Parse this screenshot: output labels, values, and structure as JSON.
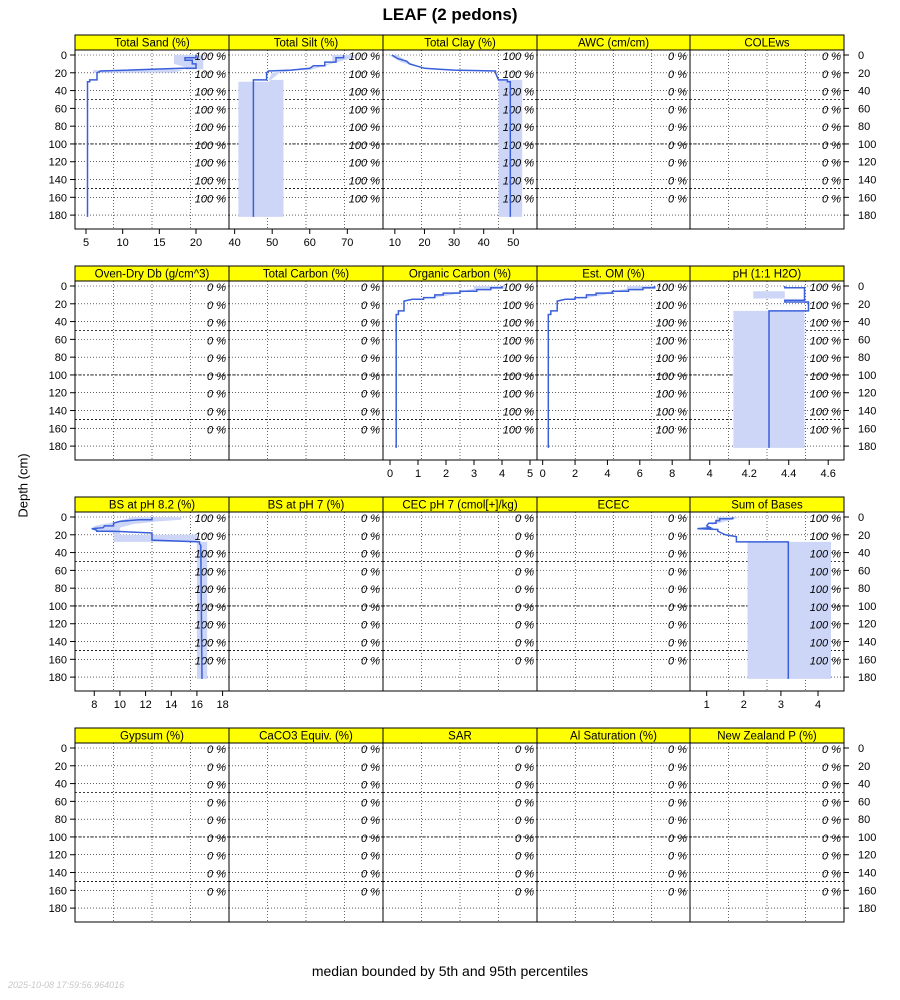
{
  "chart_data": {
    "type": "line",
    "title": "LEAF (2 pedons)",
    "ylabel": "Depth (cm)",
    "caption": "median bounded by 5th and 95th percentiles",
    "timestamp": "2025-10-08 17:59:56.964016",
    "y_axis": {
      "ylim": [
        0,
        190
      ],
      "reversed": true,
      "ticks": [
        0,
        20,
        40,
        60,
        80,
        100,
        120,
        140,
        160,
        180
      ],
      "major_grid": [
        0,
        50,
        100,
        150
      ]
    },
    "line_color": "#3a5fdb",
    "band_color": "#cdd6f6",
    "strip_color": "#ffff00",
    "panels": [
      {
        "label": "Total Sand (%)",
        "xlim": [
          3.5,
          24.5
        ],
        "xticks": [
          5,
          10,
          15,
          20
        ],
        "coverage": "100 %",
        "median": [
          [
            20,
            0
          ],
          [
            20,
            3
          ],
          [
            18.5,
            3
          ],
          [
            18.5,
            6
          ],
          [
            19.5,
            6
          ],
          [
            19.5,
            10
          ],
          [
            20,
            10
          ],
          [
            20,
            15
          ],
          [
            18,
            15
          ],
          [
            7,
            18
          ],
          [
            6.5,
            20
          ],
          [
            6.5,
            28
          ],
          [
            5.5,
            28
          ],
          [
            5.5,
            30
          ],
          [
            5.2,
            30
          ],
          [
            5.2,
            182
          ]
        ],
        "band": [
          [
            17,
            0
          ],
          [
            21,
            0
          ],
          [
            21,
            16
          ],
          [
            6,
            17
          ],
          [
            6,
            20
          ],
          [
            17,
            20
          ],
          [
            19,
            15
          ],
          [
            17,
            10
          ]
        ]
      },
      {
        "label": "Total Silt (%)",
        "xlim": [
          38.5,
          79.5
        ],
        "xticks": [
          40,
          50,
          60,
          70
        ],
        "coverage": "100 %",
        "median": [
          [
            69,
            0
          ],
          [
            69,
            3
          ],
          [
            67,
            3
          ],
          [
            67,
            8
          ],
          [
            64,
            8
          ],
          [
            64,
            12
          ],
          [
            61,
            12
          ],
          [
            60,
            15
          ],
          [
            55,
            17
          ],
          [
            49,
            18
          ],
          [
            48.5,
            20
          ],
          [
            48.5,
            28
          ],
          [
            45,
            28
          ],
          [
            45,
            30
          ],
          [
            45,
            182
          ]
        ],
        "band": [
          [
            66,
            0
          ],
          [
            72,
            0
          ],
          [
            72,
            3
          ],
          [
            69,
            6
          ],
          [
            64,
            12
          ],
          [
            60,
            17
          ],
          [
            55,
            17
          ],
          [
            50,
            20
          ],
          [
            49,
            28
          ],
          [
            53,
            28
          ],
          [
            53,
            182
          ],
          [
            41,
            182
          ],
          [
            41,
            30
          ],
          [
            49,
            30
          ],
          [
            52,
            20
          ],
          [
            60,
            15
          ],
          [
            63,
            12
          ],
          [
            66,
            8
          ]
        ]
      },
      {
        "label": "Total Clay (%)",
        "xlim": [
          6,
          58
        ],
        "xticks": [
          10,
          20,
          30,
          40,
          50
        ],
        "coverage": "100 %",
        "median": [
          [
            9,
            0
          ],
          [
            11,
            4
          ],
          [
            14,
            7
          ],
          [
            15,
            10
          ],
          [
            17,
            12
          ],
          [
            20,
            15
          ],
          [
            25,
            16
          ],
          [
            30,
            17
          ],
          [
            44,
            18
          ],
          [
            44,
            20
          ],
          [
            45,
            28
          ],
          [
            48,
            28
          ],
          [
            48,
            30
          ],
          [
            49,
            30
          ],
          [
            49,
            182
          ]
        ],
        "band": [
          [
            8,
            0
          ],
          [
            11,
            0
          ],
          [
            13,
            5
          ],
          [
            15,
            9
          ],
          [
            16,
            12
          ],
          [
            14,
            10
          ],
          [
            12,
            8
          ],
          [
            10,
            4
          ]
        ],
        "band2": [
          [
            45,
            28
          ],
          [
            53,
            28
          ],
          [
            53,
            182
          ],
          [
            45,
            182
          ]
        ]
      },
      {
        "label": "AWC (cm/cm)",
        "coverage": "0 %"
      },
      {
        "label": "COLEws",
        "coverage": "0 %"
      },
      {
        "label": "Oven-Dry Db (g/cm^3)",
        "coverage": "0 %"
      },
      {
        "label": "Total Carbon (%)",
        "coverage": "0 %"
      },
      {
        "label": "Organic Carbon (%)",
        "xlim": [
          -0.25,
          5.25
        ],
        "xticks": [
          0,
          1,
          2,
          3,
          4,
          5
        ],
        "coverage": "100 %",
        "median": [
          [
            4,
            0
          ],
          [
            4,
            2
          ],
          [
            3.6,
            2
          ],
          [
            3.6,
            4
          ],
          [
            3.1,
            4
          ],
          [
            3.1,
            6
          ],
          [
            2.5,
            6
          ],
          [
            2.5,
            8
          ],
          [
            1.9,
            8
          ],
          [
            1.9,
            10
          ],
          [
            1.6,
            10
          ],
          [
            1.6,
            13
          ],
          [
            1.2,
            13
          ],
          [
            1.2,
            15
          ],
          [
            0.8,
            15
          ],
          [
            0.5,
            17
          ],
          [
            0.5,
            28
          ],
          [
            0.3,
            28
          ],
          [
            0.3,
            32
          ],
          [
            0.22,
            32
          ],
          [
            0.22,
            182
          ]
        ],
        "band": [
          [
            3,
            0
          ],
          [
            4.1,
            0
          ],
          [
            4.1,
            3
          ],
          [
            3.2,
            4
          ],
          [
            2.6,
            7
          ],
          [
            2.2,
            10
          ],
          [
            1.8,
            12
          ],
          [
            1.5,
            14
          ],
          [
            1.6,
            10
          ],
          [
            2,
            8
          ],
          [
            2.5,
            6
          ],
          [
            3,
            3
          ]
        ]
      },
      {
        "label": "Est. OM (%)",
        "xlim": [
          -0.35,
          9.1
        ],
        "xticks": [
          0,
          2,
          4,
          6,
          8
        ],
        "coverage": "100 %",
        "median": [
          [
            6.9,
            0
          ],
          [
            6.9,
            2
          ],
          [
            6.2,
            2
          ],
          [
            6.2,
            4
          ],
          [
            5.3,
            4
          ],
          [
            5.3,
            6
          ],
          [
            4.3,
            6
          ],
          [
            4.3,
            8
          ],
          [
            3.3,
            8
          ],
          [
            3.3,
            10
          ],
          [
            2.7,
            10
          ],
          [
            2.7,
            13
          ],
          [
            2,
            13
          ],
          [
            2,
            15
          ],
          [
            1.4,
            15
          ],
          [
            0.9,
            17
          ],
          [
            0.9,
            28
          ],
          [
            0.5,
            28
          ],
          [
            0.5,
            32
          ],
          [
            0.35,
            32
          ],
          [
            0.35,
            182
          ]
        ],
        "band": [
          [
            5.2,
            0
          ],
          [
            7,
            0
          ],
          [
            7,
            3
          ],
          [
            5.5,
            4
          ],
          [
            4.4,
            7
          ],
          [
            3.8,
            10
          ],
          [
            3.1,
            12
          ],
          [
            2.6,
            14
          ],
          [
            2.8,
            10
          ],
          [
            3.4,
            8
          ],
          [
            4.3,
            6
          ],
          [
            5.2,
            3
          ]
        ]
      },
      {
        "label": "pH (1:1 H2O)",
        "xlim": [
          3.9,
          4.68
        ],
        "xticks": [
          4.0,
          4.2,
          4.4,
          4.6
        ],
        "coverage": "100 %",
        "median": [
          [
            4.38,
            0
          ],
          [
            4.38,
            2
          ],
          [
            4.48,
            2
          ],
          [
            4.48,
            16
          ],
          [
            4.38,
            16
          ],
          [
            4.38,
            18
          ],
          [
            4.5,
            18
          ],
          [
            4.5,
            28
          ],
          [
            4.3,
            28
          ],
          [
            4.3,
            182
          ]
        ],
        "band": [
          [
            4.22,
            6
          ],
          [
            4.38,
            6
          ],
          [
            4.38,
            14
          ],
          [
            4.22,
            14
          ]
        ],
        "band2": [
          [
            4.12,
            28
          ],
          [
            4.48,
            28
          ],
          [
            4.48,
            182
          ],
          [
            4.12,
            182
          ]
        ]
      },
      {
        "label": "BS at pH 8.2 (%)",
        "xlim": [
          6.5,
          18.5
        ],
        "xticks": [
          8,
          10,
          12,
          14,
          16,
          18
        ],
        "coverage": "100 %",
        "median": [
          [
            12.5,
            0
          ],
          [
            12.5,
            3
          ],
          [
            11.5,
            3
          ],
          [
            10,
            5
          ],
          [
            9.5,
            7
          ],
          [
            9.5,
            10
          ],
          [
            8.8,
            10
          ],
          [
            8.7,
            12
          ],
          [
            7.8,
            13
          ],
          [
            8.2,
            15
          ],
          [
            8.2,
            16
          ],
          [
            9.5,
            16
          ],
          [
            12.5,
            18
          ],
          [
            12.5,
            26
          ],
          [
            16.2,
            28
          ],
          [
            16.2,
            30
          ],
          [
            16.3,
            32
          ],
          [
            16.4,
            182
          ]
        ],
        "band": [
          [
            11,
            0
          ],
          [
            14.8,
            0
          ],
          [
            14.8,
            3
          ],
          [
            13,
            5
          ],
          [
            11,
            8
          ],
          [
            10,
            12
          ],
          [
            10,
            20
          ],
          [
            16,
            20
          ],
          [
            16,
            28
          ],
          [
            9.5,
            28
          ],
          [
            9.5,
            18
          ],
          [
            8,
            15
          ],
          [
            8,
            10
          ],
          [
            9.5,
            6
          ]
        ],
        "band2": [
          [
            16,
            28
          ],
          [
            16.8,
            28
          ],
          [
            16.8,
            182
          ],
          [
            16,
            182
          ]
        ]
      },
      {
        "label": "BS at pH 7 (%)",
        "coverage": "0 %"
      },
      {
        "label": "CEC pH 7 (cmol[+]/kg)",
        "coverage": "0 %"
      },
      {
        "label": "ECEC",
        "coverage": "0 %"
      },
      {
        "label": "Sum of Bases",
        "xlim": [
          0.55,
          4.7
        ],
        "xticks": [
          1,
          2,
          3,
          4
        ],
        "coverage": "100 %",
        "median": [
          [
            1.7,
            0
          ],
          [
            1.7,
            2
          ],
          [
            1.35,
            2
          ],
          [
            1.35,
            4
          ],
          [
            1.25,
            4
          ],
          [
            1.25,
            7
          ],
          [
            1.05,
            7
          ],
          [
            1,
            10
          ],
          [
            1.1,
            12
          ],
          [
            0.75,
            13
          ],
          [
            1.3,
            14
          ],
          [
            1.3,
            16
          ],
          [
            1.4,
            18
          ],
          [
            1.5,
            20
          ],
          [
            1.8,
            22
          ],
          [
            1.8,
            28
          ],
          [
            3.2,
            28
          ],
          [
            3.2,
            182
          ]
        ],
        "band": [
          [
            1.3,
            0
          ],
          [
            1.9,
            0
          ],
          [
            1.6,
            4
          ],
          [
            1.2,
            8
          ],
          [
            0.9,
            13
          ],
          [
            0.8,
            14
          ],
          [
            1.1,
            10
          ],
          [
            1.2,
            6
          ]
        ],
        "band2": [
          [
            2.1,
            28
          ],
          [
            4.35,
            28
          ],
          [
            4.35,
            182
          ],
          [
            2.1,
            182
          ]
        ]
      },
      {
        "label": "Gypsum (%)",
        "coverage": "0 %"
      },
      {
        "label": "CaCO3 Equiv. (%)",
        "coverage": "0 %"
      },
      {
        "label": "SAR",
        "coverage": "0 %"
      },
      {
        "label": "Al Saturation (%)",
        "coverage": "0 %"
      },
      {
        "label": "New Zealand P (%)",
        "coverage": "0 %"
      }
    ]
  }
}
